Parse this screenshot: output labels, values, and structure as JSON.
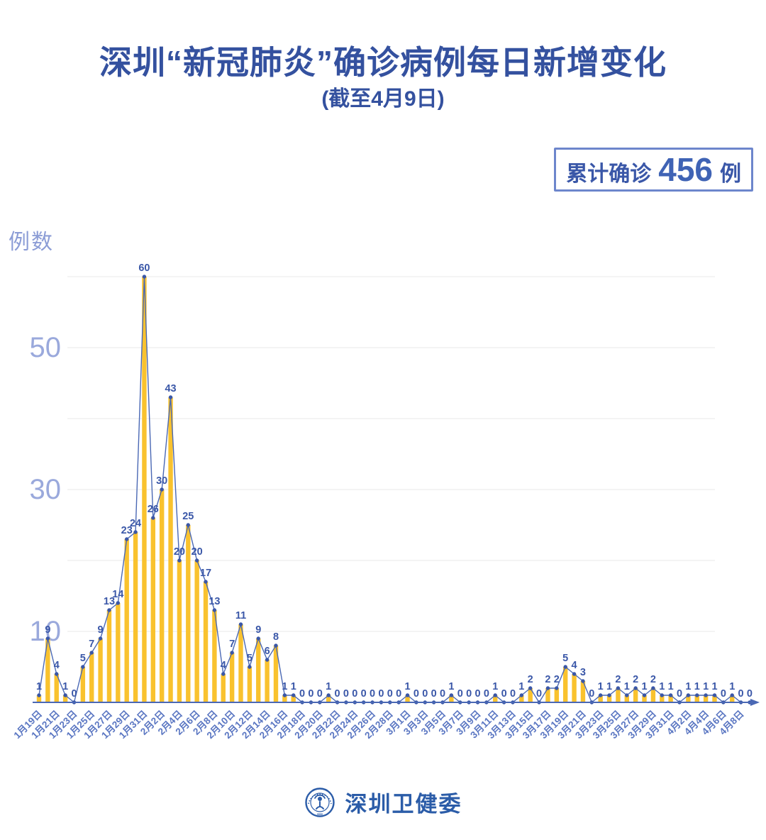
{
  "page": {
    "title": "深圳“新冠肺炎”确诊病例每日新增变化",
    "subtitle": "(截至4月9日)"
  },
  "badge": {
    "prefix": "累计确诊",
    "value": "456",
    "suffix": "例"
  },
  "footer": {
    "org_name": "深圳卫健委"
  },
  "colors": {
    "title_blue": "#34519F",
    "bar_yellow": "#F9C22E",
    "line_blue": "#4A68B4",
    "point_blue": "#3A57A8",
    "value_label_blue": "#3A57A8",
    "y_tick_text": "#9AA9DC",
    "x_tick_text": "#5A76C2",
    "axis_blue": "#4A68B4",
    "grid_gray": "#EDEDED",
    "badge_border": "#6D86CC",
    "footer_blue": "#2B5CA8"
  },
  "chart_data": {
    "type": "bar+line",
    "title": "深圳“新冠肺炎”确诊病例每日新增变化 (截至4月9日)",
    "ylabel": "例数",
    "ylim": [
      0,
      62
    ],
    "y_ticks_labeled": [
      50,
      30,
      10
    ],
    "gridlines_every": 10,
    "legend": "none",
    "x_tick_every": 2,
    "x_tick_labels": [
      "1月19日",
      "1月21日",
      "1月23日",
      "1月25日",
      "1月27日",
      "1月29日",
      "1月31日",
      "2月2日",
      "2月4日",
      "2月6日",
      "2月8日",
      "2月10日",
      "2月12日",
      "2月14日",
      "2月16日",
      "2月18日",
      "2月20日",
      "2月22日",
      "2月24日",
      "2月26日",
      "2月28日",
      "3月1日",
      "3月3日",
      "3月5日",
      "3月7日",
      "3月9日",
      "3月11日",
      "3月13日",
      "3月15日",
      "3月17日",
      "3月19日",
      "3月21日",
      "3月23日",
      "3月25日",
      "3月27日",
      "3月29日",
      "3月31日",
      "4月2日",
      "4月4日",
      "4月6日",
      "4月8日"
    ],
    "values": [
      1,
      9,
      4,
      1,
      0,
      5,
      7,
      9,
      13,
      14,
      23,
      24,
      60,
      26,
      30,
      43,
      20,
      25,
      20,
      17,
      13,
      4,
      7,
      11,
      5,
      9,
      6,
      8,
      1,
      1,
      0,
      0,
      0,
      1,
      0,
      0,
      0,
      0,
      0,
      0,
      0,
      0,
      1,
      0,
      0,
      0,
      0,
      1,
      0,
      0,
      0,
      0,
      1,
      0,
      0,
      1,
      2,
      0,
      2,
      2,
      5,
      4,
      3,
      0,
      1,
      1,
      2,
      1,
      2,
      1,
      2,
      1,
      1,
      0,
      1,
      1,
      1,
      1,
      0,
      1,
      0,
      0
    ],
    "cumulative_total": 456
  }
}
